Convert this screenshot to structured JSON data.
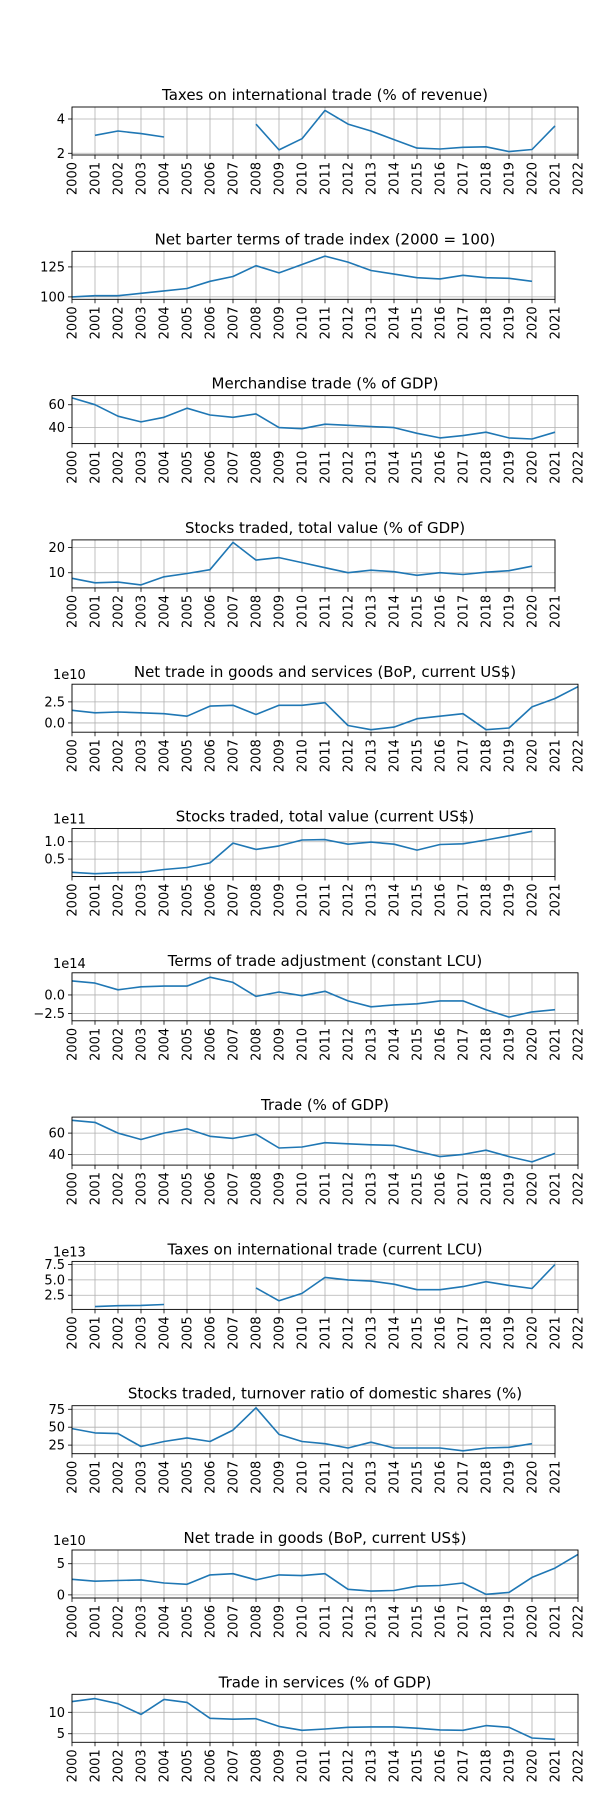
{
  "page": {
    "background": "#ffffff",
    "line_color": "#1f77b4",
    "grid_color": "#b0b0b0"
  },
  "chart_data": [
    {
      "type": "line",
      "title": "Taxes on international trade (% of revenue)",
      "offset_text": "",
      "x_ticks": [
        2000,
        2001,
        2002,
        2003,
        2004,
        2005,
        2006,
        2007,
        2008,
        2009,
        2010,
        2011,
        2012,
        2013,
        2014,
        2015,
        2016,
        2017,
        2018,
        2019,
        2020,
        2021,
        2022
      ],
      "xlim": [
        2000,
        2022
      ],
      "y_ticks": [
        2,
        4
      ],
      "y_tick_labels": [
        "2",
        "4"
      ],
      "ylim": [
        1.9,
        4.7
      ],
      "x": [
        2001,
        2002,
        2003,
        2004,
        2005,
        2006,
        2007,
        2008,
        2009,
        2010,
        2011,
        2012,
        2013,
        2014,
        2015,
        2016,
        2017,
        2018,
        2019,
        2020,
        2021
      ],
      "y": [
        3.05,
        3.3,
        3.15,
        2.95,
        null,
        null,
        null,
        3.7,
        2.2,
        2.85,
        4.5,
        3.7,
        3.3,
        2.8,
        2.3,
        2.25,
        2.35,
        2.38,
        2.1,
        2.22,
        3.6
      ]
    },
    {
      "type": "line",
      "title": "Net barter terms of trade index (2000 = 100)",
      "offset_text": "",
      "x_ticks": [
        2000,
        2001,
        2002,
        2003,
        2004,
        2005,
        2006,
        2007,
        2008,
        2009,
        2010,
        2011,
        2012,
        2013,
        2014,
        2015,
        2016,
        2017,
        2018,
        2019,
        2020,
        2021
      ],
      "xlim": [
        1999.9,
        2021.0
      ],
      "y_ticks": [
        100,
        125
      ],
      "y_tick_labels": [
        "100",
        "125"
      ],
      "ylim": [
        98,
        138
      ],
      "x": [
        2000,
        2001,
        2002,
        2003,
        2004,
        2005,
        2006,
        2007,
        2008,
        2009,
        2010,
        2011,
        2012,
        2013,
        2014,
        2015,
        2016,
        2017,
        2018,
        2019,
        2020
      ],
      "y": [
        100,
        101,
        101,
        103,
        105,
        107,
        113,
        117,
        126,
        120,
        127,
        134,
        129,
        122,
        119,
        116,
        115,
        118,
        116,
        115.5,
        113
      ]
    },
    {
      "type": "line",
      "title": "Merchandise trade (% of GDP)",
      "offset_text": "",
      "x_ticks": [
        2000,
        2001,
        2002,
        2003,
        2004,
        2005,
        2006,
        2007,
        2008,
        2009,
        2010,
        2011,
        2012,
        2013,
        2014,
        2015,
        2016,
        2017,
        2018,
        2019,
        2020,
        2021,
        2022
      ],
      "xlim": [
        1999.9,
        2022.0
      ],
      "y_ticks": [
        40,
        60
      ],
      "y_tick_labels": [
        "40",
        "60"
      ],
      "ylim": [
        26,
        68
      ],
      "x": [
        2000,
        2001,
        2002,
        2003,
        2004,
        2005,
        2006,
        2007,
        2008,
        2009,
        2010,
        2011,
        2012,
        2013,
        2014,
        2015,
        2016,
        2017,
        2018,
        2019,
        2020,
        2021
      ],
      "y": [
        66,
        60,
        50,
        45,
        49,
        57,
        51,
        49,
        52,
        40,
        39,
        43,
        42,
        41,
        40,
        35,
        31,
        33,
        36,
        31,
        30,
        36
      ]
    },
    {
      "type": "line",
      "title": "Stocks traded, total value (% of GDP)",
      "offset_text": "",
      "x_ticks": [
        2000,
        2001,
        2002,
        2003,
        2004,
        2005,
        2006,
        2007,
        2008,
        2009,
        2010,
        2011,
        2012,
        2013,
        2014,
        2015,
        2016,
        2017,
        2018,
        2019,
        2020,
        2021
      ],
      "xlim": [
        1999.9,
        2021.0
      ],
      "y_ticks": [
        10,
        20
      ],
      "y_tick_labels": [
        "10",
        "20"
      ],
      "ylim": [
        4,
        23
      ],
      "x": [
        2000,
        2001,
        2002,
        2003,
        2004,
        2005,
        2006,
        2007,
        2008,
        2009,
        2010,
        2011,
        2012,
        2013,
        2014,
        2015,
        2016,
        2017,
        2018,
        2019,
        2020
      ],
      "y": [
        7.8,
        6,
        6.3,
        5.2,
        8.4,
        9.7,
        11.2,
        22,
        15,
        16,
        14,
        12,
        10,
        11,
        10.4,
        9,
        10,
        9.3,
        10.2,
        10.8,
        12.6
      ]
    },
    {
      "type": "line",
      "title": "Net trade in goods and services (BoP, current US$)",
      "offset_text": "1e10",
      "x_ticks": [
        2000,
        2001,
        2002,
        2003,
        2004,
        2005,
        2006,
        2007,
        2008,
        2009,
        2010,
        2011,
        2012,
        2013,
        2014,
        2015,
        2016,
        2017,
        2018,
        2019,
        2020,
        2021,
        2022
      ],
      "xlim": [
        1999.9,
        2022.0
      ],
      "y_ticks": [
        0.0,
        2.5
      ],
      "y_tick_labels": [
        "0.0",
        "2.5"
      ],
      "ylim": [
        -1.1,
        4.6
      ],
      "x": [
        2000,
        2001,
        2002,
        2003,
        2004,
        2005,
        2006,
        2007,
        2008,
        2009,
        2010,
        2011,
        2012,
        2013,
        2014,
        2015,
        2016,
        2017,
        2018,
        2019,
        2020,
        2021,
        2022
      ],
      "y": [
        1.5,
        1.2,
        1.3,
        1.2,
        1.1,
        0.8,
        2.0,
        2.1,
        1.0,
        2.1,
        2.1,
        2.4,
        -0.3,
        -0.8,
        -0.5,
        0.5,
        0.8,
        1.1,
        -0.8,
        -0.6,
        1.9,
        2.9,
        4.3
      ]
    },
    {
      "type": "line",
      "title": "Stocks traded, total value (current US$)",
      "offset_text": "1e11",
      "x_ticks": [
        2000,
        2001,
        2002,
        2003,
        2004,
        2005,
        2006,
        2007,
        2008,
        2009,
        2010,
        2011,
        2012,
        2013,
        2014,
        2015,
        2016,
        2017,
        2018,
        2019,
        2020,
        2021
      ],
      "xlim": [
        1999.9,
        2021.0
      ],
      "y_ticks": [
        0.5,
        1.0
      ],
      "y_tick_labels": [
        "0.5",
        "1.0"
      ],
      "ylim": [
        0.0,
        1.38
      ],
      "x": [
        2000,
        2001,
        2002,
        2003,
        2004,
        2005,
        2006,
        2007,
        2008,
        2009,
        2010,
        2011,
        2012,
        2013,
        2014,
        2015,
        2016,
        2017,
        2018,
        2019,
        2020
      ],
      "y": [
        0.12,
        0.08,
        0.11,
        0.12,
        0.2,
        0.26,
        0.39,
        0.96,
        0.78,
        0.88,
        1.05,
        1.06,
        0.93,
        0.99,
        0.93,
        0.76,
        0.92,
        0.94,
        1.05,
        1.17,
        1.3
      ]
    },
    {
      "type": "line",
      "title": "Terms of trade adjustment (constant LCU)",
      "offset_text": "1e14",
      "x_ticks": [
        2000,
        2001,
        2002,
        2003,
        2004,
        2005,
        2006,
        2007,
        2008,
        2009,
        2010,
        2011,
        2012,
        2013,
        2014,
        2015,
        2016,
        2017,
        2018,
        2019,
        2020,
        2021,
        2022
      ],
      "xlim": [
        1999.9,
        2022.0
      ],
      "y_ticks": [
        -2.5,
        0.0
      ],
      "y_tick_labels": [
        "−2.5",
        "0.0"
      ],
      "ylim": [
        -3.5,
        3.0
      ],
      "x": [
        2000,
        2001,
        2002,
        2003,
        2004,
        2005,
        2006,
        2007,
        2008,
        2009,
        2010,
        2011,
        2012,
        2013,
        2014,
        2015,
        2016,
        2017,
        2018,
        2019,
        2020,
        2021
      ],
      "y": [
        1.9,
        1.6,
        0.7,
        1.1,
        1.2,
        1.2,
        2.4,
        1.7,
        -0.2,
        0.4,
        -0.1,
        0.5,
        -0.8,
        -1.6,
        -1.35,
        -1.2,
        -0.8,
        -0.8,
        -2.0,
        -3.0,
        -2.3,
        -2.0
      ]
    },
    {
      "type": "line",
      "title": "Trade (% of GDP)",
      "offset_text": "",
      "x_ticks": [
        2000,
        2001,
        2002,
        2003,
        2004,
        2005,
        2006,
        2007,
        2008,
        2009,
        2010,
        2011,
        2012,
        2013,
        2014,
        2015,
        2016,
        2017,
        2018,
        2019,
        2020,
        2021,
        2022
      ],
      "xlim": [
        1999.9,
        2022.0
      ],
      "y_ticks": [
        40,
        60
      ],
      "y_tick_labels": [
        "40",
        "60"
      ],
      "ylim": [
        30,
        75
      ],
      "x": [
        2000,
        2001,
        2002,
        2003,
        2004,
        2005,
        2006,
        2007,
        2008,
        2009,
        2010,
        2011,
        2012,
        2013,
        2014,
        2015,
        2016,
        2017,
        2018,
        2019,
        2020,
        2021
      ],
      "y": [
        72,
        70,
        60,
        54,
        60,
        64,
        57,
        55,
        59,
        46,
        47,
        51,
        50,
        49,
        48.5,
        43,
        38,
        40,
        44,
        38,
        33,
        41
      ]
    },
    {
      "type": "line",
      "title": "Taxes on international trade (current LCU)",
      "offset_text": "1e13",
      "x_ticks": [
        2000,
        2001,
        2002,
        2003,
        2004,
        2005,
        2006,
        2007,
        2008,
        2009,
        2010,
        2011,
        2012,
        2013,
        2014,
        2015,
        2016,
        2017,
        2018,
        2019,
        2020,
        2021,
        2022
      ],
      "xlim": [
        2000,
        2022
      ],
      "y_ticks": [
        2.5,
        5.0,
        7.5
      ],
      "y_tick_labels": [
        "2.5",
        "5.0",
        "7.5"
      ],
      "ylim": [
        0.2,
        8.0
      ],
      "x": [
        2001,
        2002,
        2003,
        2004,
        2005,
        2006,
        2007,
        2008,
        2009,
        2010,
        2011,
        2012,
        2013,
        2014,
        2015,
        2016,
        2017,
        2018,
        2019,
        2020,
        2021
      ],
      "y": [
        0.65,
        0.8,
        0.85,
        1.0,
        null,
        null,
        null,
        3.7,
        1.6,
        2.8,
        5.4,
        5.0,
        4.8,
        4.3,
        3.4,
        3.4,
        3.9,
        4.7,
        4.1,
        3.6,
        7.5
      ]
    },
    {
      "type": "line",
      "title": "Stocks traded, turnover ratio of domestic shares (%)",
      "offset_text": "",
      "x_ticks": [
        2000,
        2001,
        2002,
        2003,
        2004,
        2005,
        2006,
        2007,
        2008,
        2009,
        2010,
        2011,
        2012,
        2013,
        2014,
        2015,
        2016,
        2017,
        2018,
        2019,
        2020,
        2021
      ],
      "xlim": [
        1999.9,
        2021.0
      ],
      "y_ticks": [
        25,
        50,
        75
      ],
      "y_tick_labels": [
        "25",
        "50",
        "75"
      ],
      "ylim": [
        13,
        80
      ],
      "x": [
        2000,
        2001,
        2002,
        2003,
        2004,
        2005,
        2006,
        2007,
        2008,
        2009,
        2010,
        2011,
        2012,
        2013,
        2014,
        2015,
        2016,
        2017,
        2018,
        2019,
        2020
      ],
      "y": [
        48,
        42,
        41,
        23,
        30,
        35,
        30,
        46,
        77,
        40,
        30,
        27,
        21,
        29,
        21,
        21,
        21,
        17,
        21,
        22,
        27
      ]
    },
    {
      "type": "line",
      "title": "Net trade in goods (BoP, current US$)",
      "offset_text": "1e10",
      "x_ticks": [
        2000,
        2001,
        2002,
        2003,
        2004,
        2005,
        2006,
        2007,
        2008,
        2009,
        2010,
        2011,
        2012,
        2013,
        2014,
        2015,
        2016,
        2017,
        2018,
        2019,
        2020,
        2021,
        2022
      ],
      "xlim": [
        1999.9,
        2022.0
      ],
      "y_ticks": [
        0,
        5
      ],
      "y_tick_labels": [
        "0",
        "5"
      ],
      "ylim": [
        -0.5,
        7.2
      ],
      "x": [
        2000,
        2001,
        2002,
        2003,
        2004,
        2005,
        2006,
        2007,
        2008,
        2009,
        2010,
        2011,
        2012,
        2013,
        2014,
        2015,
        2016,
        2017,
        2018,
        2019,
        2020,
        2021,
        2022
      ],
      "y": [
        2.5,
        2.2,
        2.3,
        2.4,
        1.9,
        1.7,
        3.2,
        3.4,
        2.4,
        3.2,
        3.1,
        3.4,
        0.9,
        0.6,
        0.7,
        1.4,
        1.5,
        1.9,
        0.1,
        0.4,
        2.8,
        4.3,
        6.5
      ]
    },
    {
      "type": "line",
      "title": "Trade in services (% of GDP)",
      "offset_text": "",
      "x_ticks": [
        2000,
        2001,
        2002,
        2003,
        2004,
        2005,
        2006,
        2007,
        2008,
        2009,
        2010,
        2011,
        2012,
        2013,
        2014,
        2015,
        2016,
        2017,
        2018,
        2019,
        2020,
        2021,
        2022
      ],
      "xlim": [
        1999.9,
        2022.0
      ],
      "y_ticks": [
        5,
        10
      ],
      "y_tick_labels": [
        "5",
        "10"
      ],
      "ylim": [
        3.0,
        14.2
      ],
      "x": [
        2000,
        2001,
        2002,
        2003,
        2004,
        2005,
        2006,
        2007,
        2008,
        2009,
        2010,
        2011,
        2012,
        2013,
        2014,
        2015,
        2016,
        2017,
        2018,
        2019,
        2020,
        2021
      ],
      "y": [
        12.5,
        13.2,
        12,
        9.5,
        13,
        12.3,
        8.6,
        8.4,
        8.5,
        6.7,
        5.8,
        6.1,
        6.5,
        6.6,
        6.6,
        6.3,
        5.9,
        5.8,
        6.9,
        6.5,
        4.0,
        3.7
      ]
    }
  ]
}
